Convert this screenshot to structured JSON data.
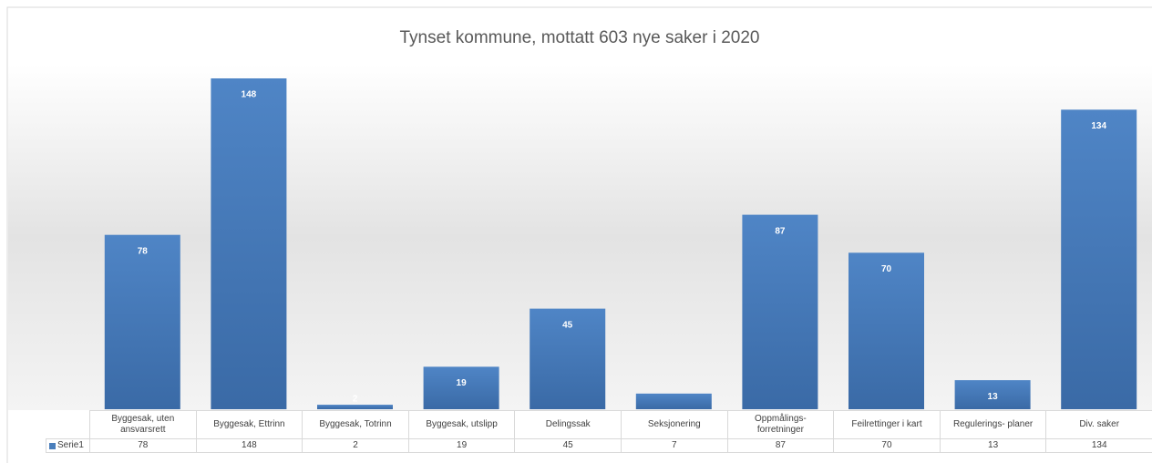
{
  "chart_data": {
    "type": "bar",
    "title": "Tynset kommune, mottatt 603 nye saker i 2020",
    "categories": [
      "Byggesak, uten ansvarsrett",
      "Byggesak, Ettrinn",
      "Byggesak, Totrinn",
      "Byggesak, utslipp",
      "Delingssak",
      "Seksjonering",
      "Oppmålings- forretninger",
      "Feilrettinger i kart",
      "Regulerings- planer",
      "Div. saker"
    ],
    "series": [
      {
        "name": "Serie1",
        "color": "#4a7ebb",
        "values": [
          78,
          148,
          2,
          19,
          45,
          7,
          87,
          70,
          13,
          134
        ],
        "value_labels": [
          "78",
          "148",
          "2",
          "19",
          "45",
          null,
          "87",
          "70",
          "13",
          "134"
        ]
      }
    ],
    "data_table": true
  }
}
